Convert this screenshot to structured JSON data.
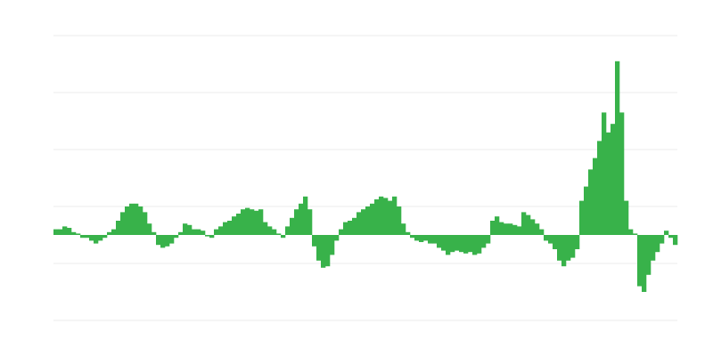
{
  "chart_data": {
    "type": "bar",
    "title": "",
    "xlabel": "",
    "ylabel": "",
    "ylim": [
      -3,
      7
    ],
    "gridlines": [
      -3,
      -1,
      1,
      3,
      5,
      7
    ],
    "grid": true,
    "bar_color": "#38b24a",
    "grid_color": "#ebebeb",
    "values": [
      0.2,
      0.2,
      0.3,
      0.25,
      0.1,
      0.05,
      -0.1,
      -0.1,
      -0.2,
      -0.3,
      -0.2,
      -0.1,
      0.1,
      0.2,
      0.5,
      0.8,
      1.0,
      1.1,
      1.1,
      1.0,
      0.8,
      0.4,
      0.1,
      -0.35,
      -0.45,
      -0.4,
      -0.3,
      -0.1,
      0.1,
      0.4,
      0.35,
      0.2,
      0.2,
      0.15,
      -0.05,
      -0.1,
      0.2,
      0.3,
      0.45,
      0.5,
      0.65,
      0.75,
      0.9,
      0.95,
      0.9,
      0.85,
      0.9,
      0.45,
      0.3,
      0.2,
      0.05,
      -0.1,
      0.3,
      0.6,
      0.9,
      1.1,
      1.35,
      0.9,
      -0.4,
      -0.9,
      -1.15,
      -1.1,
      -0.7,
      -0.2,
      0.2,
      0.45,
      0.5,
      0.6,
      0.8,
      0.9,
      1.0,
      1.1,
      1.25,
      1.35,
      1.3,
      1.2,
      1.35,
      1.0,
      0.4,
      0.1,
      -0.1,
      -0.2,
      -0.25,
      -0.2,
      -0.3,
      -0.3,
      -0.45,
      -0.55,
      -0.7,
      -0.6,
      -0.55,
      -0.6,
      -0.65,
      -0.6,
      -0.7,
      -0.65,
      -0.45,
      -0.3,
      0.5,
      0.65,
      0.45,
      0.4,
      0.4,
      0.35,
      0.3,
      0.8,
      0.7,
      0.55,
      0.4,
      0.2,
      -0.2,
      -0.3,
      -0.5,
      -0.9,
      -1.1,
      -0.9,
      -0.8,
      -0.5,
      1.2,
      1.7,
      2.3,
      2.7,
      3.3,
      4.3,
      3.6,
      3.9,
      6.1,
      4.3,
      1.2,
      0.2,
      0.05,
      -1.8,
      -2.0,
      -1.4,
      -0.9,
      -0.6,
      -0.3,
      0.15,
      -0.1,
      -0.35
    ]
  }
}
